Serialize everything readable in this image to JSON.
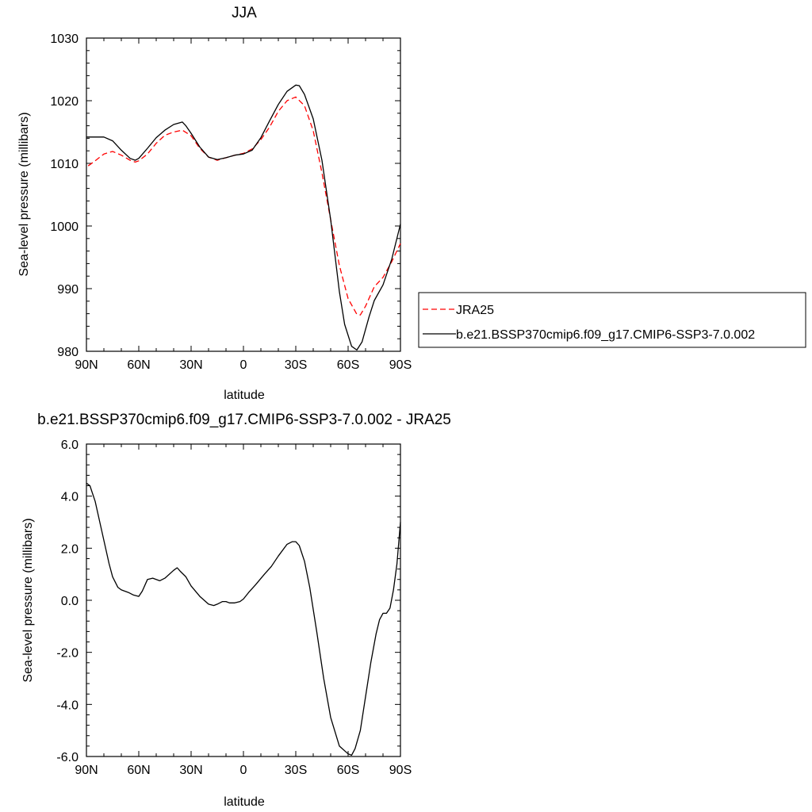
{
  "chart_data": [
    {
      "type": "line",
      "title": "JJA",
      "xlabel": "latitude",
      "ylabel": "Sea-level pressure (millibars)",
      "xlim": [
        90,
        -90
      ],
      "ylim": [
        980,
        1030
      ],
      "xticks": [
        90,
        60,
        30,
        0,
        -30,
        -60,
        -90
      ],
      "xtick_labels": [
        "90N",
        "60N",
        "30N",
        "0",
        "30S",
        "60S",
        "90S"
      ],
      "yticks": [
        980,
        990,
        1000,
        1010,
        1020,
        1030
      ],
      "ytick_labels": [
        "980",
        "990",
        "1000",
        "1010",
        "1020",
        "1030"
      ],
      "grid": false,
      "legend_position": "right",
      "series": [
        {
          "name": "JRA25",
          "color": "#ff0000",
          "dash": "dashed",
          "x": [
            89,
            85,
            80,
            75,
            70,
            65,
            62,
            60,
            55,
            50,
            45,
            40,
            35,
            30,
            25,
            20,
            15,
            10,
            5,
            0,
            -5,
            -10,
            -15,
            -20,
            -25,
            -30,
            -35,
            -40,
            -45,
            -50,
            -55,
            -60,
            -65,
            -67,
            -70,
            -75,
            -80,
            -85,
            -90
          ],
          "y": [
            1009.6,
            1010.4,
            1011.5,
            1011.9,
            1011.3,
            1010.5,
            1010.2,
            1010.4,
            1011.5,
            1013.2,
            1014.5,
            1015.0,
            1015.3,
            1014.4,
            1012.4,
            1011.0,
            1010.5,
            1010.9,
            1011.3,
            1011.6,
            1012.3,
            1013.8,
            1015.8,
            1018.3,
            1020.0,
            1020.6,
            1019.2,
            1015.2,
            1008.5,
            1001.0,
            993.7,
            988.4,
            985.9,
            985.8,
            987.2,
            990.3,
            991.8,
            994.3,
            997.2
          ]
        },
        {
          "name": "b.e21.BSSP370cmip6.f09_g17.CMIP6-SSP3-7.0.002",
          "color": "#000000",
          "dash": "solid",
          "x": [
            90,
            80,
            75,
            70,
            65,
            62,
            60,
            55,
            50,
            45,
            40,
            35,
            33,
            30,
            25,
            20,
            15,
            10,
            5,
            0,
            -5,
            -10,
            -15,
            -20,
            -25,
            -30,
            -32,
            -35,
            -40,
            -45,
            -50,
            -55,
            -58,
            -62,
            -65,
            -68,
            -72,
            -75,
            -80,
            -85,
            -90
          ],
          "y": [
            1014.2,
            1014.2,
            1013.6,
            1012.1,
            1010.8,
            1010.5,
            1010.8,
            1012.4,
            1014.1,
            1015.3,
            1016.2,
            1016.6,
            1016.0,
            1014.8,
            1012.6,
            1011.0,
            1010.6,
            1010.9,
            1011.3,
            1011.5,
            1012.1,
            1014.1,
            1016.8,
            1019.4,
            1021.5,
            1022.5,
            1022.4,
            1021.0,
            1017.1,
            1010.5,
            1001.0,
            989.5,
            984.3,
            980.8,
            980.2,
            981.5,
            985.5,
            988.1,
            990.6,
            994.7,
            1000.3
          ]
        }
      ],
      "legend": {
        "entries": [
          "JRA25",
          "b.e21.BSSP370cmip6.f09_g17.CMIP6-SSP3-7.0.002"
        ]
      }
    },
    {
      "type": "line",
      "title": "b.e21.BSSP370cmip6.f09_g17.CMIP6-SSP3-7.0.002 - JRA25",
      "xlabel": "latitude",
      "ylabel": "Sea-level pressure (millibars)",
      "xlim": [
        90,
        -90
      ],
      "ylim": [
        -6.0,
        6.0
      ],
      "xticks": [
        90,
        60,
        30,
        0,
        -30,
        -60,
        -90
      ],
      "xtick_labels": [
        "90N",
        "60N",
        "30N",
        "0",
        "30S",
        "60S",
        "90S"
      ],
      "yticks": [
        -6.0,
        -4.0,
        -2.0,
        0.0,
        2.0,
        4.0,
        6.0
      ],
      "ytick_labels": [
        "-6.0",
        "-4.0",
        "-2.0",
        "0.0",
        "2.0",
        "4.0",
        "6.0"
      ],
      "grid": false,
      "series": [
        {
          "color": "#000000",
          "dash": "solid",
          "x": [
            90,
            88,
            85,
            80,
            77,
            75,
            72,
            70,
            66,
            63,
            60,
            58,
            55,
            52,
            48,
            45,
            40,
            38,
            36,
            33,
            30,
            25,
            20,
            17,
            15,
            12,
            10,
            8,
            5,
            2,
            0,
            -3,
            -7,
            -12,
            -16,
            -20,
            -25,
            -28,
            -30,
            -32,
            -35,
            -38,
            -42,
            -46,
            -50,
            -55,
            -60,
            -62,
            -64,
            -67,
            -70,
            -73,
            -76,
            -78,
            -80,
            -82,
            -84,
            -86,
            -88,
            -90
          ],
          "y": [
            4.5,
            4.4,
            3.8,
            2.3,
            1.4,
            0.9,
            0.5,
            0.4,
            0.3,
            0.2,
            0.15,
            0.35,
            0.8,
            0.85,
            0.75,
            0.85,
            1.15,
            1.25,
            1.1,
            0.9,
            0.55,
            0.15,
            -0.15,
            -0.2,
            -0.15,
            -0.05,
            -0.05,
            -0.1,
            -0.1,
            -0.05,
            0.05,
            0.3,
            0.6,
            1.0,
            1.3,
            1.7,
            2.15,
            2.25,
            2.25,
            2.1,
            1.5,
            0.5,
            -1.2,
            -3.0,
            -4.5,
            -5.6,
            -5.9,
            -5.95,
            -5.7,
            -5.0,
            -3.7,
            -2.4,
            -1.3,
            -0.75,
            -0.5,
            -0.5,
            -0.3,
            0.4,
            1.4,
            3.0
          ]
        }
      ]
    }
  ]
}
